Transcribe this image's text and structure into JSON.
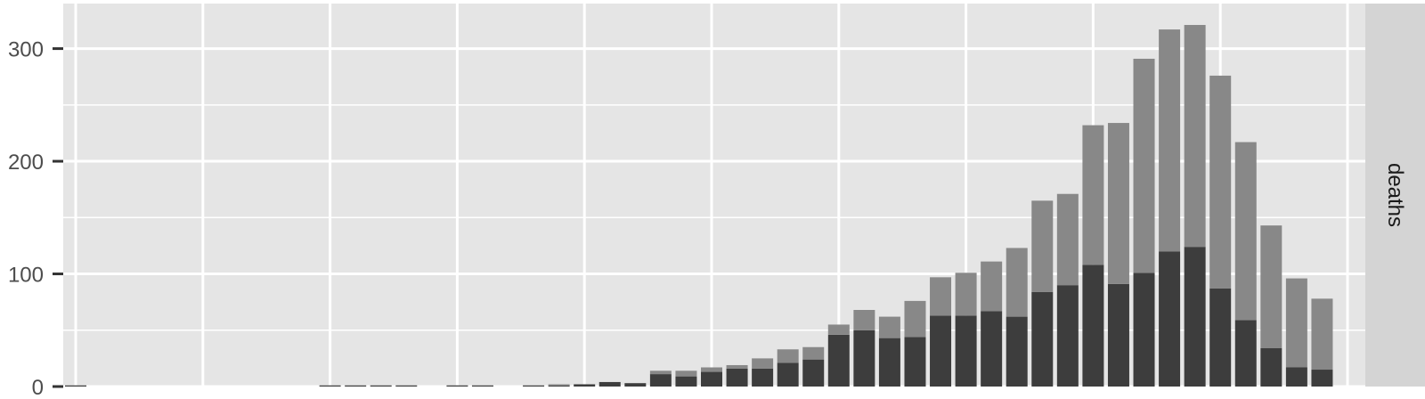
{
  "chart_data": {
    "type": "bar",
    "facet_label": "deaths",
    "stacked": true,
    "ylim": [
      0,
      340
    ],
    "yticks": [
      0,
      100,
      200,
      300
    ],
    "grid": true,
    "legend": "none",
    "colors": {
      "panel": "#e5e5e5",
      "grid": "#ffffff",
      "strip": "#d9d9d9",
      "series_bottom": "#3d3d3d",
      "series_top": "#888888"
    },
    "x": [
      0,
      10,
      11,
      12,
      13,
      15,
      16,
      18,
      19,
      20,
      21,
      22,
      23,
      24,
      25,
      26,
      27,
      28,
      29,
      30,
      31,
      32,
      33,
      34,
      35,
      36,
      37,
      38,
      39,
      40,
      41,
      42,
      43,
      44,
      45,
      46,
      47,
      48,
      49,
      50
    ],
    "series": [
      {
        "values": [
          1,
          1,
          1,
          1,
          1,
          1,
          1,
          1,
          1,
          2,
          4,
          3,
          11,
          9,
          13,
          16,
          16,
          21,
          24,
          46,
          50,
          43,
          44,
          63,
          63,
          67,
          62,
          84,
          90,
          108,
          91,
          101,
          120,
          124,
          87,
          59,
          34,
          17,
          15,
          0
        ]
      },
      {
        "values": [
          0,
          0,
          0,
          0,
          0,
          0,
          0,
          0,
          1,
          0,
          0,
          0,
          3,
          5,
          4,
          3,
          9,
          12,
          11,
          9,
          18,
          19,
          32,
          34,
          38,
          44,
          61,
          81,
          81,
          124,
          143,
          190,
          197,
          197,
          189,
          158,
          109,
          79,
          63,
          0
        ]
      }
    ]
  }
}
